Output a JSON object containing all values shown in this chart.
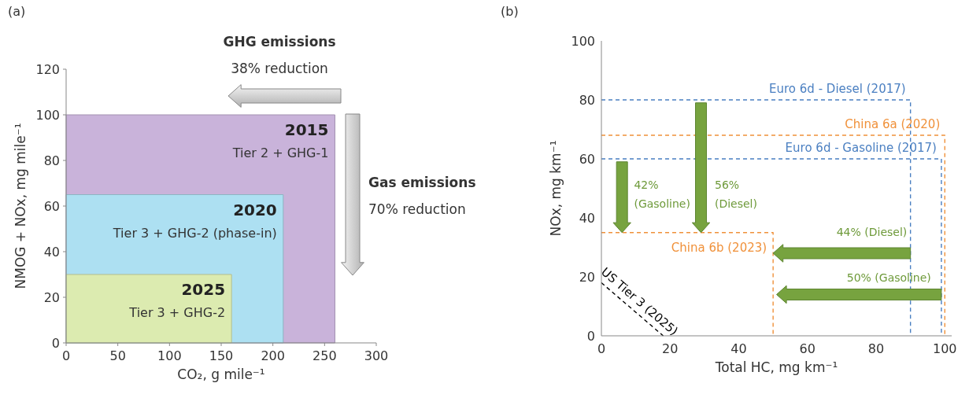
{
  "chart_data": [
    {
      "type": "area",
      "title": "(a)",
      "xlabel": "CO₂, g mile⁻¹",
      "ylabel": "NMOG + NOx, mg mile⁻¹",
      "xlim": [
        0,
        300
      ],
      "xticks": [
        0,
        50,
        100,
        150,
        200,
        250,
        300
      ],
      "ylim": [
        0,
        120
      ],
      "yticks": [
        0,
        20,
        40,
        60,
        80,
        100,
        120
      ],
      "series": [
        {
          "name": "2015",
          "color": "#c9b3da",
          "x": [
            0,
            260
          ],
          "values": [
            100,
            100
          ]
        },
        {
          "name": "2020",
          "color": "#ade0f2",
          "x": [
            0,
            210
          ],
          "values": [
            65,
            65
          ]
        },
        {
          "name": "2025",
          "color": "#dcebb0",
          "x": [
            0,
            160
          ],
          "values": [
            30,
            30
          ]
        }
      ],
      "annotations": [
        "GHG emissions",
        "38% reduction",
        "Gas emissions",
        "70% reduction",
        "Tier 2 + GHG-1",
        "Tier 3 + GHG-2 (phase-in)",
        "Tier 3 + GHG-2"
      ]
    },
    {
      "type": "line",
      "title": "(b)",
      "xlabel": "Total HC, mg km⁻¹",
      "ylabel": "NOx, mg km⁻¹",
      "xlim": [
        0,
        102
      ],
      "xticks": [
        0,
        20,
        40,
        60,
        80,
        100
      ],
      "ylim": [
        0,
        100
      ],
      "yticks": [
        0,
        20,
        40,
        60,
        80,
        100
      ],
      "line_style": "dashed",
      "series": [
        {
          "name": "Euro 6d - Diesel (2017)",
          "color": "#4a7fc1",
          "x": [
            0,
            90,
            90
          ],
          "values": [
            80,
            80,
            0
          ]
        },
        {
          "name": "China 6a (2020)",
          "color": "#f0913a",
          "x": [
            0,
            100,
            100
          ],
          "values": [
            68,
            68,
            0
          ]
        },
        {
          "name": "Euro 6d - Gasoline (2017)",
          "color": "#4a7fc1",
          "x": [
            0,
            99,
            99
          ],
          "values": [
            60,
            60,
            0
          ]
        },
        {
          "name": "China 6b (2023)",
          "color": "#f0913a",
          "x": [
            0,
            50,
            50
          ],
          "values": [
            35,
            35,
            0
          ]
        },
        {
          "name": "US Tier 3 (2025)",
          "color": "#000000",
          "x": [
            0,
            18
          ],
          "values": [
            18,
            0
          ]
        }
      ],
      "annotations": [
        {
          "text": "42% (Gasoline)",
          "x": 6,
          "y": 35
        },
        {
          "text": "56% (Diesel)",
          "x": 29,
          "y": 35
        },
        {
          "text": "44% (Diesel)",
          "x": 90,
          "y": 28
        },
        {
          "text": "50% (Gasoline)",
          "x": 99,
          "y": 14
        }
      ]
    }
  ]
}
